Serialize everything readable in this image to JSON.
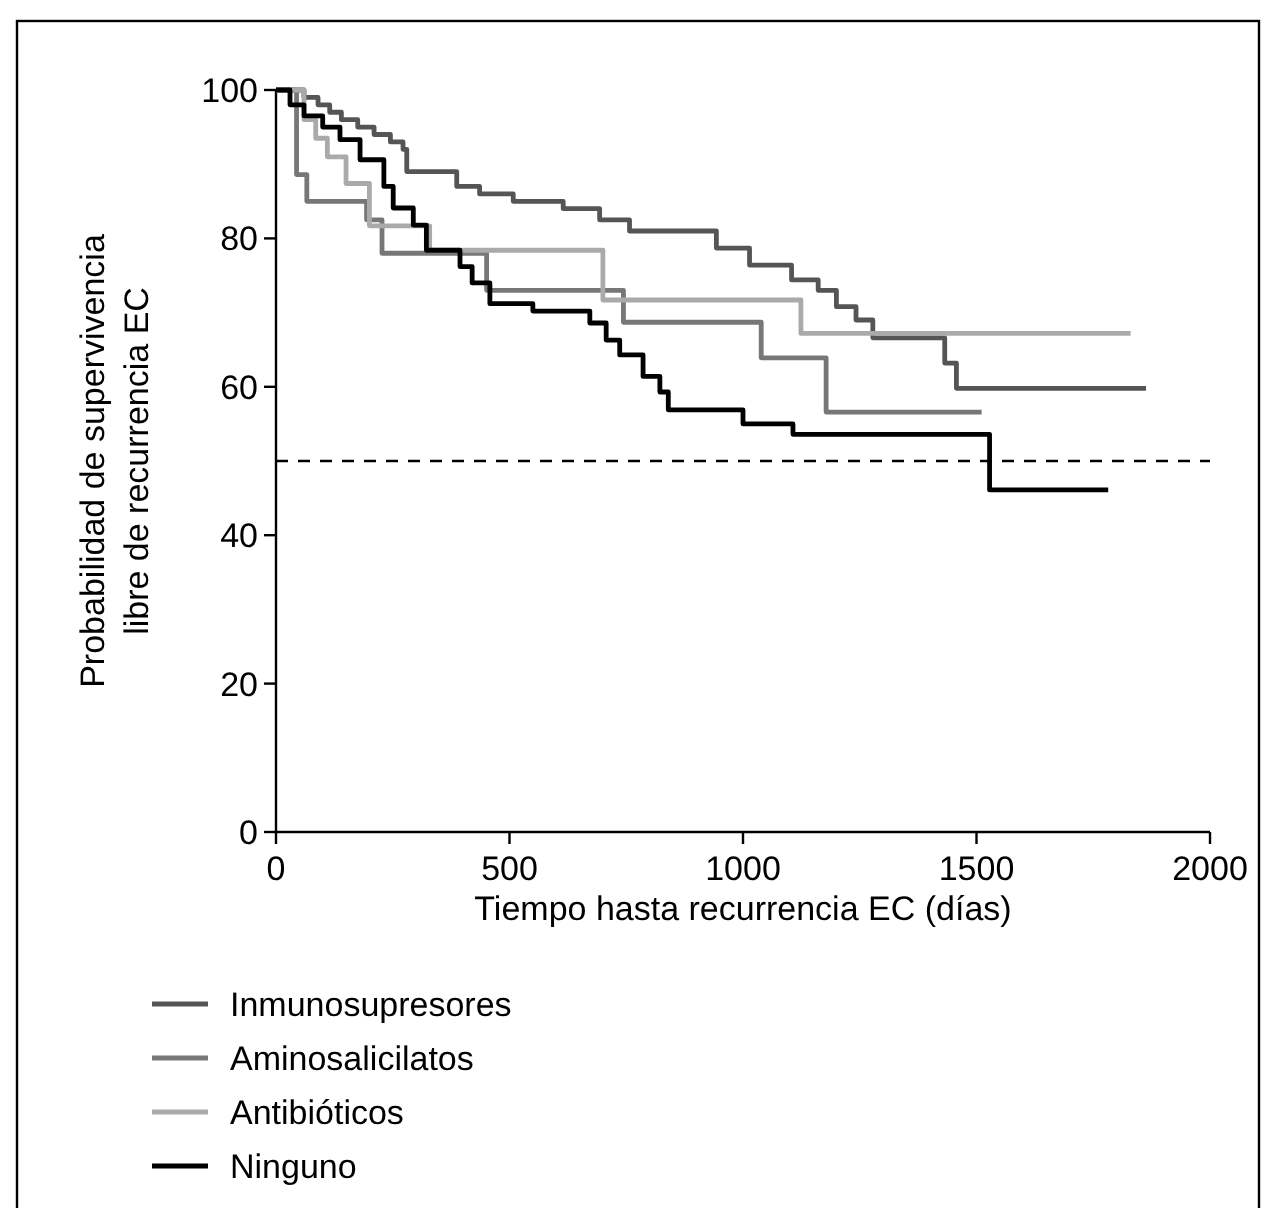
{
  "chart_data": {
    "type": "step",
    "xlabel": "Tiempo hasta recurrencia EC (días)",
    "ylabel": "Probabilidad de supervivencia libre de recurrencia EC",
    "xlim": [
      0,
      2000
    ],
    "xticks": [
      0,
      500,
      1000,
      1500,
      2000
    ],
    "ylim": [
      0,
      100
    ],
    "yticks": [
      0,
      20,
      40,
      60,
      80,
      100
    ],
    "grid": false,
    "legend": "bottom left",
    "marker": "none",
    "line_style": "solid",
    "ref_lines": [
      {
        "axis": "y",
        "value": 50,
        "line_style": "dashed",
        "color": "#000000"
      }
    ],
    "series": [
      {
        "name": "Inmunosupresores",
        "color": "#555555",
        "x": [
          0,
          60,
          90,
          115,
          140,
          175,
          210,
          245,
          272,
          280,
          387,
          436,
          508,
          615,
          693,
          757,
          943,
          1014,
          1104,
          1161,
          1200,
          1242,
          1278,
          1432,
          1457,
          1863
        ],
        "values": [
          100,
          99,
          98,
          97,
          96,
          95,
          94,
          93,
          92,
          89,
          87,
          86,
          85,
          84,
          82.5,
          81,
          78.7,
          76.4,
          74.4,
          73,
          70.8,
          69,
          66.6,
          63.2,
          59.8,
          59.8
        ]
      },
      {
        "name": "Aminosalicilatos",
        "color": "#777777",
        "x": [
          0,
          44,
          66,
          194,
          227,
          451,
          744,
          1039,
          1178,
          1511
        ],
        "values": [
          100,
          88.6,
          85,
          82.5,
          78,
          73,
          68.7,
          63.9,
          56.6,
          56.6
        ]
      },
      {
        "name": "Antibióticos",
        "color": "#aaaaaa",
        "x": [
          0,
          60,
          85,
          110,
          150,
          200,
          329,
          700,
          1124,
          1830
        ],
        "values": [
          100,
          96,
          93.5,
          91,
          87.4,
          81.7,
          78.4,
          71.7,
          67.2,
          67.2
        ]
      },
      {
        "name": "Ninguno",
        "color": "#000000",
        "x": [
          0,
          30,
          60,
          100,
          137,
          180,
          231,
          251,
          294,
          322,
          394,
          420,
          458,
          550,
          672,
          707,
          736,
          786,
          822,
          840,
          1000,
          1107,
          1528,
          1782
        ],
        "values": [
          100,
          98,
          96.5,
          95,
          93.3,
          90.6,
          87,
          84.1,
          81.8,
          78.4,
          76.2,
          74,
          71.2,
          70.2,
          68.6,
          66.3,
          64.3,
          61.4,
          59.3,
          56.9,
          55,
          53.6,
          46.1,
          46.1
        ]
      }
    ]
  }
}
